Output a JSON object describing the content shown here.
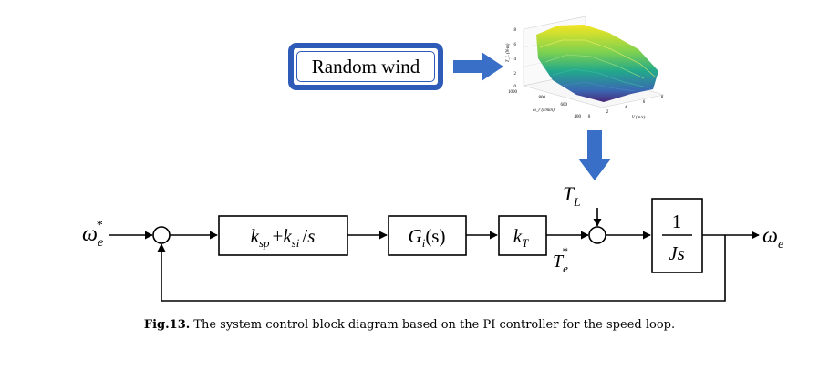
{
  "diagram": {
    "input_block": {
      "label": "Random wind"
    },
    "surface_plot": {
      "y_ticks": [
        "8",
        "6",
        "4",
        "2",
        "0"
      ],
      "y_label": "T_L (N·m)",
      "depth_ticks": [
        "1000",
        "800",
        "600",
        "400"
      ],
      "depth_label": "ω_r (r/min)",
      "x_ticks": [
        "0",
        "2",
        "4",
        "6",
        "8"
      ],
      "x_label": "V (m/s)"
    },
    "signals": {
      "reference": {
        "base": "ω",
        "sub": "e",
        "sup": "*"
      },
      "output": {
        "base": "ω",
        "sub": "e"
      },
      "load_torque": {
        "base": "T",
        "sub": "L"
      },
      "torque_ref": {
        "base": "T",
        "sub": "e",
        "sup": "*"
      }
    },
    "blocks": {
      "pi": {
        "k1": "k",
        "k1_sub": "sp",
        "plus": "+",
        "k2": "k",
        "k2_sub": "si",
        "div": "/",
        "s": "s"
      },
      "gi": {
        "g": "G",
        "g_sub": "i",
        "arg": "(s)"
      },
      "kt": {
        "k": "k",
        "k_sub": "T"
      },
      "plant": {
        "num": "1",
        "den": "Js"
      }
    },
    "colors": {
      "accent_arrow": "#3a6fc7",
      "box_border": "#2e5bb8"
    }
  },
  "caption": {
    "label": "Fig.13.",
    "text": "The system control block diagram based on the PI controller for the speed loop."
  }
}
